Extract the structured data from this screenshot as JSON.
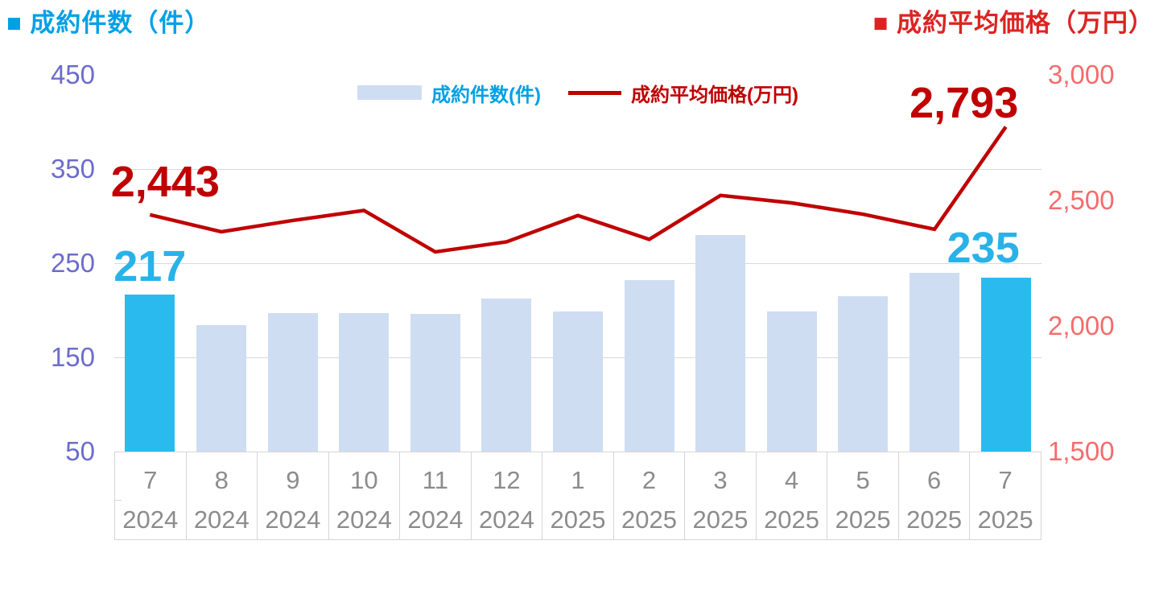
{
  "header": {
    "left_title": "■ 成約件数（件）",
    "right_title": "■ 成約平均価格（万円）"
  },
  "legend": {
    "bar_label": "成約件数(件)",
    "line_label": "成約平均価格(万円)"
  },
  "chart_data": {
    "type": "bar+line combo",
    "categories": [
      {
        "month": "7",
        "year": "2024"
      },
      {
        "month": "8",
        "year": "2024"
      },
      {
        "month": "9",
        "year": "2024"
      },
      {
        "month": "10",
        "year": "2024"
      },
      {
        "month": "11",
        "year": "2024"
      },
      {
        "month": "12",
        "year": "2024"
      },
      {
        "month": "1",
        "year": "2025"
      },
      {
        "month": "2",
        "year": "2025"
      },
      {
        "month": "3",
        "year": "2025"
      },
      {
        "month": "4",
        "year": "2025"
      },
      {
        "month": "5",
        "year": "2025"
      },
      {
        "month": "6",
        "year": "2025"
      },
      {
        "month": "7",
        "year": "2025"
      }
    ],
    "series": [
      {
        "name": "成約件数(件)",
        "type": "bar",
        "axis": "left",
        "values": [
          217,
          184,
          197,
          197,
          196,
          212,
          199,
          232,
          280,
          199,
          215,
          240,
          235
        ],
        "highlight_indices": [
          0,
          12
        ]
      },
      {
        "name": "成約平均価格(万円)",
        "type": "line",
        "axis": "right",
        "values": [
          2443,
          2375,
          2420,
          2460,
          2295,
          2335,
          2440,
          2345,
          2520,
          2490,
          2445,
          2385,
          2793
        ]
      }
    ],
    "left_axis": {
      "range": [
        50,
        450
      ],
      "ticks": [
        450,
        350,
        250,
        150,
        50
      ]
    },
    "right_axis": {
      "range": [
        1500,
        3000
      ],
      "ticks": [
        3000,
        2500,
        2000,
        1500
      ]
    },
    "gridlines_at_left_values": [
      350,
      250,
      150
    ],
    "point_labels": [
      {
        "series": "bar",
        "index": 0,
        "text": "217"
      },
      {
        "series": "bar",
        "index": 12,
        "text": "235"
      },
      {
        "series": "line",
        "index": 0,
        "text": "2,443"
      },
      {
        "series": "line",
        "index": 12,
        "text": "2,793"
      }
    ],
    "colors": {
      "bar_fill": "#cfddf2",
      "bar_highlight": "#2bbaee",
      "line": "#c00000",
      "bar_value_label": "#29b2e8",
      "line_value_label": "#c00000",
      "left_axis_title": "#00a0e6",
      "right_axis_title": "#db2422",
      "legend_bar_text": "#00a0e6",
      "legend_line_text": "#c00000",
      "left_axis_ticks": "#6c6ccc",
      "right_axis_ticks": "#f56c6c",
      "x_axis_text": "#8c8c8c",
      "gridline": "#d9d9d9",
      "axis_border": "#d6d6d6"
    }
  }
}
